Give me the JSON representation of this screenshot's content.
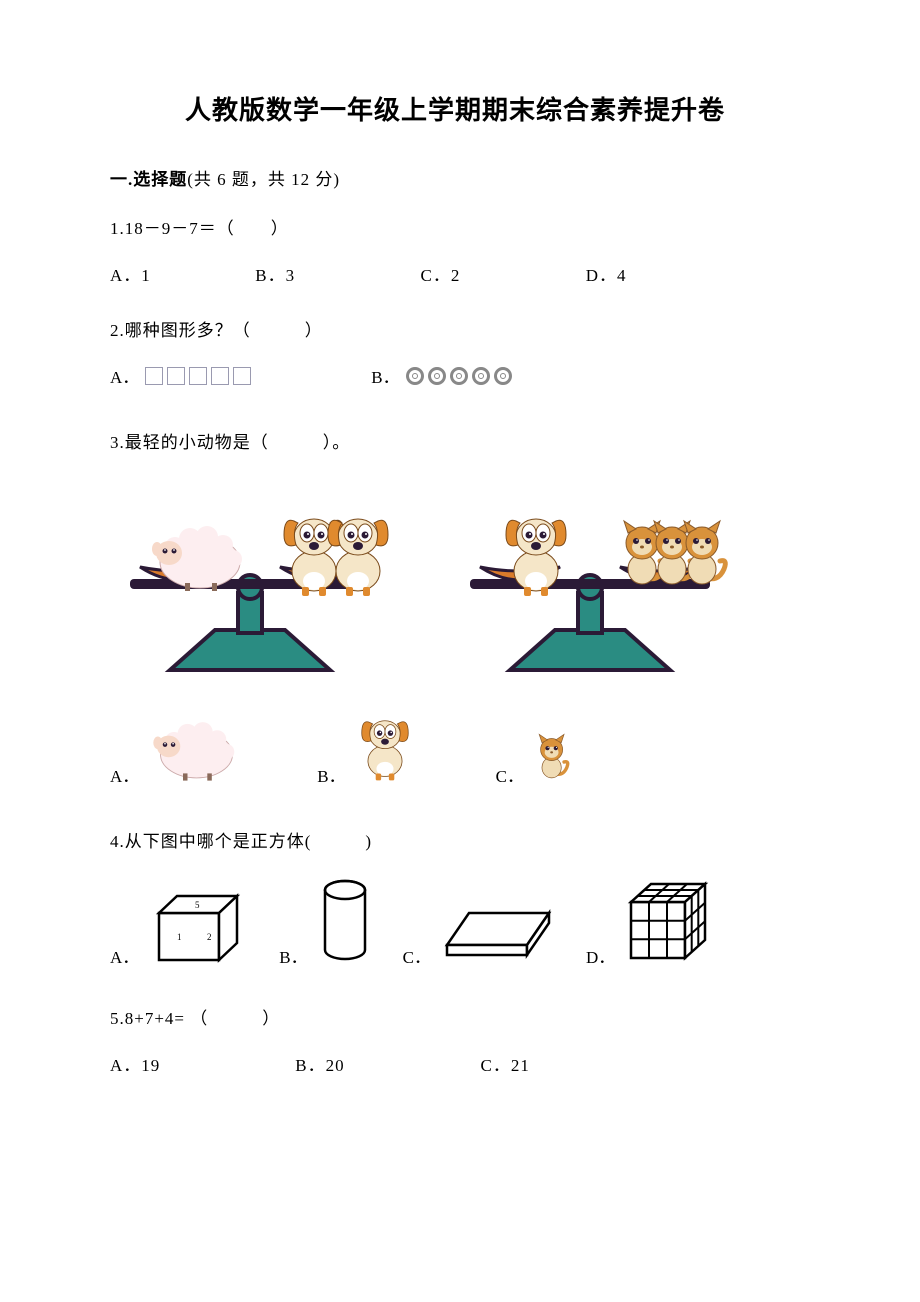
{
  "title": "人教版数学一年级上学期期末综合素养提升卷",
  "section1": {
    "heading_prefix": "一.选择题",
    "heading_suffix": "(共 6 题，共 12 分)"
  },
  "q1": {
    "text": "1.18－9－7＝（　　）",
    "a": "A．1",
    "b": "B．3",
    "c": "C．2",
    "d": "D．4"
  },
  "q2": {
    "text": "2.哪种图形多？（　　　）",
    "a": "A．",
    "b": "B．",
    "square_count": 5,
    "circle_count": 5,
    "square_color": "#9a9ab0",
    "circle_color": "#888888"
  },
  "q3": {
    "text": "3.最轻的小动物是（　　　）。",
    "a": "A．",
    "b": "B．",
    "c": "C．",
    "balance1": {
      "left_animal": "sheep",
      "left_count": 1,
      "right_animal": "dog",
      "right_count": 2
    },
    "balance2": {
      "left_animal": "dog",
      "left_count": 1,
      "right_animal": "cat",
      "right_count": 3
    },
    "colors": {
      "balance_base": "#2a8c82",
      "balance_outline": "#2b1a36",
      "pan_color": "#d97b2b",
      "sheep_body": "#fdeef0",
      "sheep_face": "#f7d9c9",
      "dog_body": "#e08a2e",
      "dog_cream": "#f5e6c8",
      "cat_body": "#d9923b",
      "cat_cream": "#f0dcb5"
    }
  },
  "q4": {
    "text": "4.从下图中哪个是正方体(　　　)",
    "a": "A．",
    "b": "B．",
    "c": "C．",
    "d": "D．",
    "shape_colors": {
      "outline": "#000000",
      "fill": "#ffffff"
    }
  },
  "q5": {
    "text": "5.8+7+4= （　　　）",
    "a": "A．19",
    "b": "B．20",
    "c": "C．21"
  }
}
